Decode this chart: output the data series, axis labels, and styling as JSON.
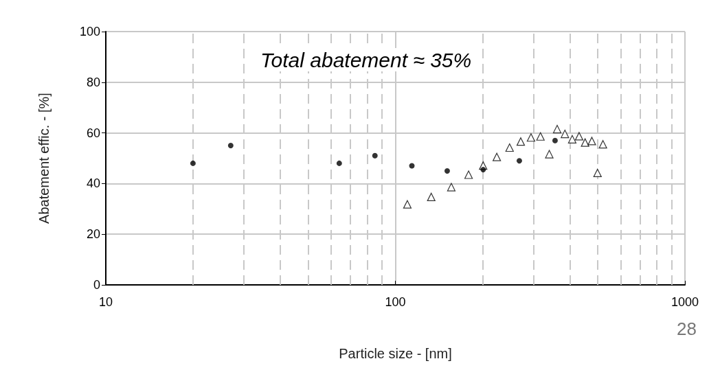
{
  "chart_data": {
    "type": "scatter",
    "xlabel": "Particle size - [nm]",
    "ylabel": "Abatement effic. - [%]",
    "annotations": [
      "Total abatement ≈ 35%",
      "28"
    ],
    "log": "x",
    "xlim": [
      10,
      1000
    ],
    "xticks": [
      10,
      100,
      1000
    ],
    "ylim": [
      0,
      100
    ],
    "yticks": [
      0,
      20,
      40,
      60,
      80,
      100
    ],
    "grid": true,
    "series": [
      {
        "color": "#000000",
        "marker": "triangle",
        "x": [
          110,
          133,
          156,
          179,
          201,
          224,
          248,
          271,
          294,
          317,
          340,
          362,
          385,
          408,
          431,
          452,
          477,
          499,
          521
        ],
        "values": [
          31.8,
          34.7,
          38.6,
          43.5,
          47.1,
          50.5,
          54.2,
          56.6,
          58.2,
          58.6,
          51.6,
          61.5,
          59.6,
          57.5,
          58.7,
          56.2,
          56.8,
          44.2,
          55.5
        ]
      },
      {
        "color": "#000000",
        "marker": "circle",
        "x": [
          20,
          27,
          64,
          85,
          114,
          151,
          201,
          268,
          356
        ],
        "values": [
          48,
          55,
          48,
          51,
          47,
          45,
          45.5,
          49,
          57
        ]
      }
    ]
  }
}
